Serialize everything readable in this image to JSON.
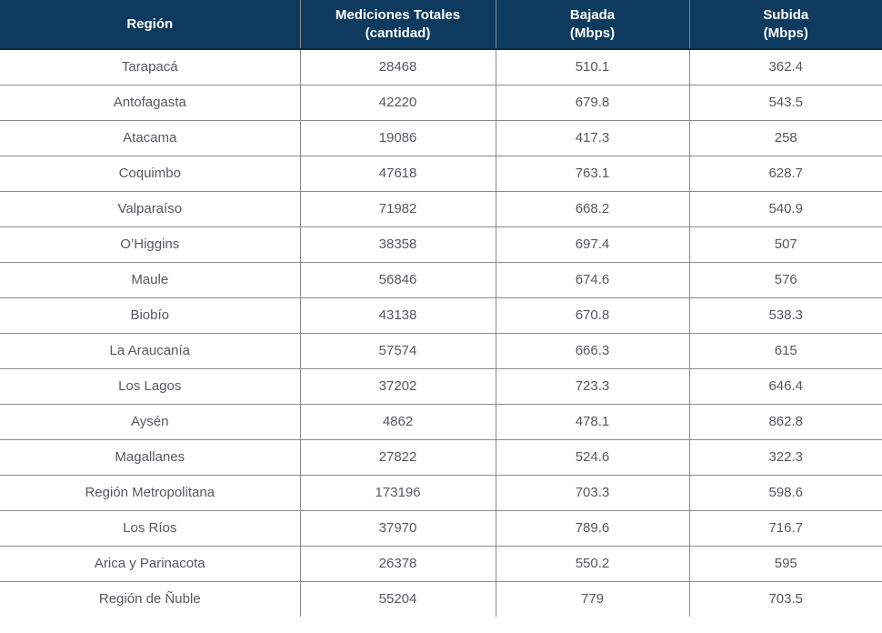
{
  "colors": {
    "header_bg": "#0d3a5e",
    "header_text": "#ffffff",
    "body_text": "#54585c",
    "grid_border": "#8a8a8a",
    "header_bottom": "#0a2c47"
  },
  "chart_data": {
    "type": "table",
    "columns": [
      {
        "label": "Región",
        "sublabel": ""
      },
      {
        "label": "Mediciones Totales",
        "sublabel": "(cantidad)"
      },
      {
        "label": "Bajada",
        "sublabel": "(Mbps)"
      },
      {
        "label": "Subida",
        "sublabel": "(Mbps)"
      }
    ],
    "rows": [
      [
        "Tarapacá",
        "28468",
        "510.1",
        "362.4"
      ],
      [
        "Antofagasta",
        "42220",
        "679.8",
        "543.5"
      ],
      [
        "Atacama",
        "19086",
        "417.3",
        "258"
      ],
      [
        "Coquimbo",
        "47618",
        "763.1",
        "628.7"
      ],
      [
        "Valparaíso",
        "71982",
        "668.2",
        "540.9"
      ],
      [
        "O’Higgins",
        "38358",
        "697.4",
        "507"
      ],
      [
        "Maule",
        "56846",
        "674.6",
        "576"
      ],
      [
        "Biobío",
        "43138",
        "670.8",
        "538.3"
      ],
      [
        "La Araucanía",
        "57574",
        "666.3",
        "615"
      ],
      [
        "Los Lagos",
        "37202",
        "723.3",
        "646.4"
      ],
      [
        "Aysén",
        "4862",
        "478.1",
        "862.8"
      ],
      [
        "Magallanes",
        "27822",
        "524.6",
        "322.3"
      ],
      [
        "Región Metropolitana",
        "173196",
        "703.3",
        "598.6"
      ],
      [
        "Los Ríos",
        "37970",
        "789.6",
        "716.7"
      ],
      [
        "Arica y Parinacota",
        "26378",
        "550.2",
        "595"
      ],
      [
        "Región de Ñuble",
        "55204",
        "779",
        "703.5"
      ]
    ]
  }
}
